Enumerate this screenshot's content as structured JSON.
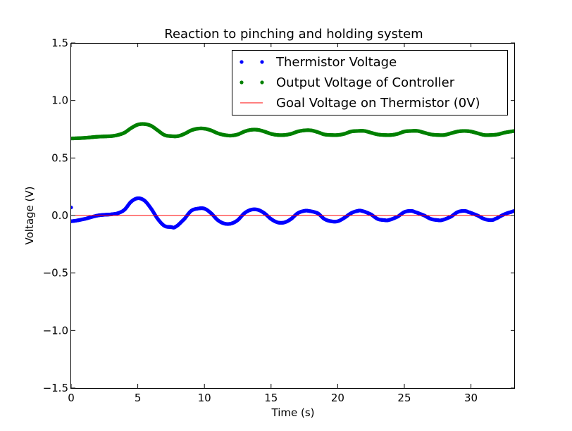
{
  "chart_data": {
    "type": "line",
    "title": "Reaction to pinching and holding system",
    "xlabel": "Time (s)",
    "ylabel": "Voltage (V)",
    "xlim": [
      0,
      33.3
    ],
    "ylim": [
      -1.5,
      1.5
    ],
    "xticks": [
      0,
      5,
      10,
      15,
      20,
      25,
      30
    ],
    "yticks": [
      -1.5,
      -1.0,
      -0.5,
      0.0,
      0.5,
      1.0,
      1.5
    ],
    "xtick_labels": [
      "0",
      "5",
      "10",
      "15",
      "20",
      "25",
      "30"
    ],
    "ytick_labels": [
      "−1.5",
      "−1.0",
      "−0.5",
      "0.0",
      "0.5",
      "1.0",
      "1.5"
    ],
    "legend_position": "top-right",
    "grid": false,
    "series": [
      {
        "name": "Thermistor Voltage",
        "style": "points",
        "color": "#0000ff",
        "x": [
          0,
          1,
          2,
          3,
          3.5,
          4,
          4.5,
          5,
          5.5,
          6,
          6.5,
          7,
          7.5,
          7.8,
          8.5,
          9,
          9.5,
          10,
          10.5,
          11,
          11.5,
          12,
          12.5,
          13,
          13.5,
          14,
          14.5,
          15,
          15.5,
          16,
          16.5,
          17,
          17.5,
          17.8,
          18.5,
          19,
          19.5,
          20,
          20.5,
          21,
          21.5,
          21.8,
          22.5,
          23,
          23.5,
          23.8,
          24.5,
          25,
          25.5,
          25.8,
          26.5,
          27,
          27.5,
          27.8,
          28.5,
          29,
          29.5,
          29.8,
          30.5,
          31,
          31.5,
          31.8,
          32.5,
          33,
          33.3
        ],
        "y": [
          -0.05,
          -0.03,
          0.0,
          0.01,
          0.02,
          0.05,
          0.12,
          0.15,
          0.13,
          0.06,
          -0.03,
          -0.09,
          -0.1,
          -0.1,
          -0.03,
          0.04,
          0.06,
          0.06,
          0.02,
          -0.04,
          -0.07,
          -0.07,
          -0.04,
          0.02,
          0.05,
          0.05,
          0.02,
          -0.03,
          -0.06,
          -0.06,
          -0.03,
          0.02,
          0.04,
          0.04,
          0.02,
          -0.03,
          -0.05,
          -0.05,
          -0.02,
          0.02,
          0.04,
          0.04,
          0.01,
          -0.03,
          -0.04,
          -0.04,
          -0.01,
          0.03,
          0.04,
          0.03,
          0.0,
          -0.03,
          -0.04,
          -0.04,
          -0.01,
          0.03,
          0.04,
          0.03,
          0.0,
          -0.03,
          -0.04,
          -0.03,
          0.01,
          0.03,
          0.04
        ]
      },
      {
        "name": "Output Voltage of Controller",
        "style": "points",
        "color": "#008000",
        "x": [
          0,
          1,
          2,
          3,
          3.5,
          4,
          4.5,
          5,
          5.5,
          6,
          6.5,
          7,
          7.5,
          8,
          8.5,
          9,
          9.5,
          10,
          10.5,
          11,
          11.5,
          12,
          12.5,
          13,
          13.5,
          14,
          14.5,
          15,
          15.5,
          16,
          16.5,
          17,
          17.5,
          18,
          18.5,
          19,
          19.5,
          20,
          20.5,
          21,
          21.5,
          22,
          22.5,
          23,
          23.5,
          24,
          24.5,
          25,
          25.5,
          26,
          26.5,
          27,
          27.5,
          28,
          28.5,
          29,
          29.5,
          30,
          30.5,
          31,
          31.5,
          32,
          32.5,
          33,
          33.3
        ],
        "y": [
          0.67,
          0.675,
          0.685,
          0.69,
          0.7,
          0.72,
          0.76,
          0.79,
          0.795,
          0.78,
          0.74,
          0.7,
          0.69,
          0.69,
          0.71,
          0.74,
          0.755,
          0.755,
          0.74,
          0.715,
          0.7,
          0.695,
          0.705,
          0.73,
          0.745,
          0.745,
          0.73,
          0.71,
          0.7,
          0.7,
          0.71,
          0.73,
          0.74,
          0.74,
          0.725,
          0.705,
          0.7,
          0.7,
          0.71,
          0.73,
          0.735,
          0.735,
          0.72,
          0.705,
          0.7,
          0.7,
          0.71,
          0.73,
          0.735,
          0.735,
          0.72,
          0.705,
          0.7,
          0.7,
          0.715,
          0.73,
          0.735,
          0.73,
          0.715,
          0.7,
          0.7,
          0.705,
          0.72,
          0.73,
          0.735
        ]
      },
      {
        "name": "Goal Voltage on Thermistor (0V)",
        "style": "line",
        "color": "#ff0000",
        "x": [
          0,
          33.3
        ],
        "y": [
          0,
          0
        ]
      }
    ],
    "outliers": [
      {
        "series": "Thermistor Voltage",
        "x": 0,
        "y": 0.07
      }
    ]
  }
}
